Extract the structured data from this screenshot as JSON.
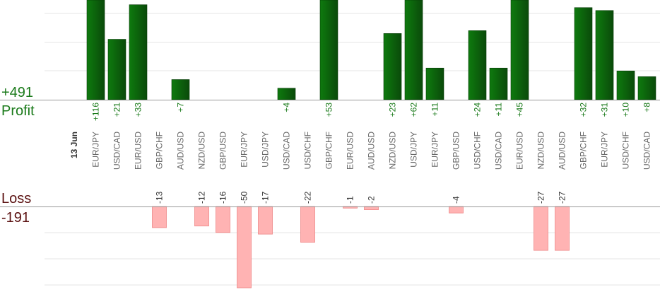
{
  "profit_total": "+491",
  "profit_label": "Profit",
  "loss_label": "Loss",
  "loss_total": "-191",
  "colors": {
    "profit_text": "#1a7a1a",
    "loss_text": "#5a1010",
    "profit_bar_dark": "#0a4a0a",
    "profit_bar_light": "#0e7a0e",
    "loss_bar_fill": "#ffb3b3",
    "loss_bar_edge": "#ee8888",
    "grid": "#e6e6e6",
    "axis": "#999999",
    "date_text": "#333333",
    "pair_text": "#666666"
  },
  "chart_data": {
    "type": "bar",
    "date_label": "13 Jun",
    "categories": [
      "EUR/JPY",
      "USD/CAD",
      "EUR/USD",
      "GBP/CHF",
      "AUD/USD",
      "NZD/USD",
      "GBP/USD",
      "EUR/JPY",
      "USD/JPY",
      "USD/CAD",
      "USD/CHF",
      "GBP/CHF",
      "EUR/USD",
      "AUD/USD",
      "NZD/USD",
      "USD/JPY",
      "EUR/JPY",
      "GBP/USD",
      "USD/CHF",
      "USD/CAD",
      "EUR/USD",
      "NZD/USD",
      "AUD/USD",
      "GBP/CHF",
      "EUR/JPY",
      "USD/CHF",
      "USD/CAD"
    ],
    "series": [
      {
        "name": "Profit",
        "values": [
          116,
          21,
          33,
          null,
          7,
          null,
          null,
          null,
          null,
          4,
          null,
          53,
          null,
          null,
          23,
          62,
          11,
          null,
          24,
          11,
          45,
          null,
          null,
          32,
          31,
          10,
          8
        ]
      },
      {
        "name": "Loss",
        "values": [
          null,
          null,
          null,
          -13,
          null,
          -12,
          -16,
          -50,
          -17,
          null,
          -22,
          null,
          -1,
          -2,
          null,
          null,
          null,
          -4,
          null,
          null,
          null,
          -27,
          -27,
          null,
          null,
          null,
          null
        ]
      }
    ],
    "profit_labels": [
      "+116",
      "+21",
      "+33",
      "",
      "+7",
      "",
      "",
      "",
      "",
      "+4",
      "",
      "+53",
      "",
      "",
      "+23",
      "+62",
      "+11",
      "",
      "+24",
      "+11",
      "+45",
      "",
      "",
      "+32",
      "+31",
      "+10",
      "+8"
    ],
    "loss_labels": [
      "",
      "",
      "",
      "-13",
      "",
      "-12",
      "-16",
      "-50",
      "-17",
      "",
      "-22",
      "",
      "-1",
      "-2",
      "",
      "",
      "",
      "-4",
      "",
      "",
      "",
      "-27",
      "-27",
      "",
      "",
      "",
      ""
    ],
    "profit_axis_max": 35,
    "loss_axis_max": 50,
    "grid": true
  }
}
